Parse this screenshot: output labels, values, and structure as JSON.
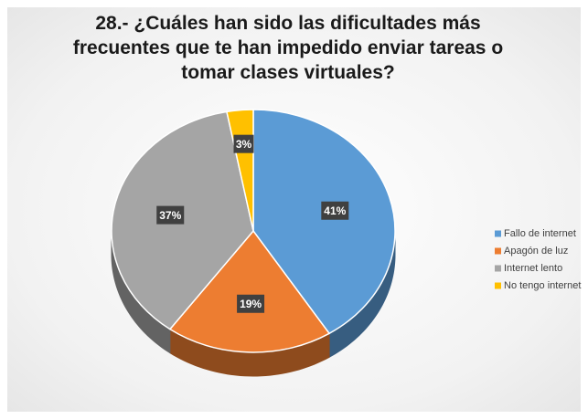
{
  "chart_data": {
    "type": "pie",
    "title": "28.- ¿Cuáles han sido las dificultades más frecuentes que te han impedido enviar tareas o tomar clases virtuales?",
    "categories": [
      "Fallo de internet",
      "Apagón de luz",
      "Internet lento",
      "No tengo internet"
    ],
    "values": [
      41,
      19,
      37,
      3
    ],
    "value_labels": [
      "41%",
      "19%",
      "37%",
      "3%"
    ],
    "colors": [
      "#5b9bd5",
      "#ed7d31",
      "#a5a5a5",
      "#ffc000"
    ],
    "legend": "right"
  }
}
